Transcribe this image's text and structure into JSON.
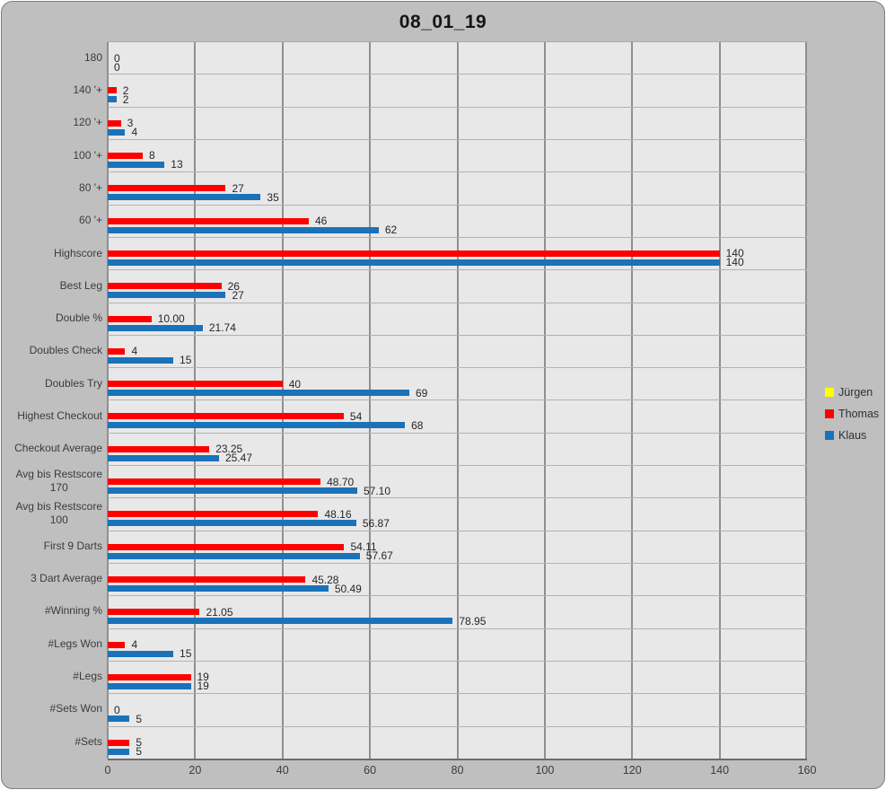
{
  "chart_data": {
    "type": "bar",
    "orientation": "horizontal",
    "title": "08_01_19",
    "categories_order": "top_to_bottom",
    "categories": [
      "180",
      "140 '+",
      "120 '+",
      "100 '+",
      "80 '+",
      "60 '+",
      "Highscore",
      "Best Leg",
      "Double %",
      "Doubles Check",
      "Doubles Try",
      "Highest Checkout",
      "Checkout Average",
      "Avg bis Restscore\n170",
      "Avg bis Restscore\n100",
      "First 9 Darts",
      "3 Dart Average",
      "#Winning %",
      "#Legs Won",
      "#Legs",
      "#Sets Won",
      "#Sets"
    ],
    "series": [
      {
        "key": "juergen",
        "name": "Jürgen",
        "color": "#FFFF00",
        "values": [],
        "labels": []
      },
      {
        "key": "thomas",
        "name": "Thomas",
        "color": "#FE0000",
        "values": [
          0,
          2,
          3,
          8,
          27,
          46,
          140,
          26,
          10,
          4,
          40,
          54,
          23.25,
          48.7,
          48.16,
          54.11,
          45.28,
          21.05,
          4,
          19,
          0,
          5
        ],
        "labels": [
          "0",
          "2",
          "3",
          "8",
          "27",
          "46",
          "140",
          "26",
          "10.00",
          "4",
          "40",
          "54",
          "23.25",
          "48.70",
          "48.16",
          "54.11",
          "45.28",
          "21.05",
          "4",
          "19",
          "0",
          "5"
        ]
      },
      {
        "key": "klaus",
        "name": "Klaus",
        "color": "#1B72B8",
        "values": [
          0,
          2,
          4,
          13,
          35,
          62,
          140,
          27,
          21.74,
          15,
          69,
          68,
          25.47,
          57.1,
          56.87,
          57.67,
          50.49,
          78.95,
          15,
          19,
          5,
          5
        ],
        "labels": [
          "0",
          "2",
          "4",
          "13",
          "35",
          "62",
          "140",
          "27",
          "21.74",
          "15",
          "69",
          "68",
          "25.47",
          "57.10",
          "56.87",
          "57.67",
          "50.49",
          "78.95",
          "15",
          "19",
          "5",
          "5"
        ]
      }
    ],
    "x_axis": {
      "min": 0,
      "max": 160,
      "tick_interval": 20,
      "ticks": [
        0,
        20,
        40,
        60,
        80,
        100,
        120,
        140,
        160
      ]
    },
    "legend": {
      "position": "right",
      "entries": [
        "Jürgen",
        "Thomas",
        "Klaus"
      ]
    },
    "grid": "vertical-major-on",
    "colors": {
      "frame_bg": "#BFBFBF",
      "plot_bg": "#E8E8E8",
      "gridline": "#8F8F8F",
      "row_separator": "#B2B2B2",
      "axis_text": "#3B3B3B",
      "label_text": "#262626"
    }
  }
}
